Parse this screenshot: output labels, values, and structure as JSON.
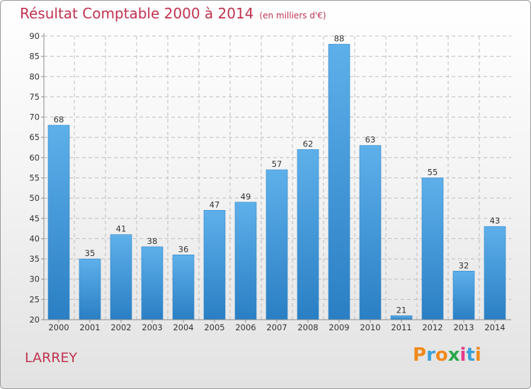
{
  "header": {
    "title": "Résultat Comptable 2000 à 2014",
    "subtitle": "(en milliers d'€)"
  },
  "footer": {
    "town": "LARREY",
    "logo_letters": [
      "P",
      "r",
      "o",
      "x",
      "i",
      "t",
      "i"
    ],
    "logo_colors": [
      "#f08a1c",
      "#3aa0d8",
      "#f08a1c",
      "#2aa84a",
      "#e63a8c",
      "#3aa0d8",
      "#f08a1c"
    ]
  },
  "colors": {
    "title": "#c0324f",
    "bar_top": "#5eb0ea",
    "bar_bottom": "#2a7fc4",
    "axis": "#8c8c8c",
    "grid": "#bdbdbd",
    "label": "#333333"
  },
  "chart_data": {
    "type": "bar",
    "title": "Résultat Comptable 2000 à 2014",
    "xlabel": "",
    "ylabel": "",
    "categories": [
      "2000",
      "2001",
      "2002",
      "2003",
      "2004",
      "2005",
      "2006",
      "2007",
      "2008",
      "2009",
      "2010",
      "2011",
      "2012",
      "2013",
      "2014"
    ],
    "values": [
      68,
      35,
      41,
      38,
      36,
      47,
      49,
      57,
      62,
      88,
      63,
      21,
      55,
      32,
      43
    ],
    "ylim": [
      20,
      90
    ],
    "yticks": [
      20,
      25,
      30,
      35,
      40,
      45,
      50,
      55,
      60,
      65,
      70,
      75,
      80,
      85,
      90
    ],
    "grid": true,
    "legend": "none"
  }
}
